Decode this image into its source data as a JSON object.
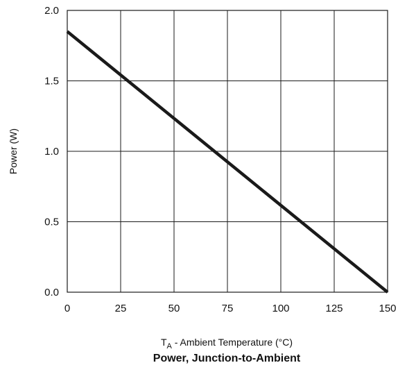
{
  "chart_data": {
    "type": "line",
    "title": "Power, Junction-to-Ambient",
    "xlabel_main": "T",
    "xlabel_sub": "A",
    "xlabel_rest": " - Ambient Temperature (°C)",
    "ylabel": "Power (W)",
    "xlim": [
      0,
      150
    ],
    "ylim": [
      0.0,
      2.0
    ],
    "x_ticks": [
      "0",
      "25",
      "50",
      "75",
      "100",
      "125",
      "150"
    ],
    "y_ticks": [
      "0.0",
      "0.5",
      "1.0",
      "1.5",
      "2.0"
    ],
    "grid": true,
    "series": [
      {
        "x": [
          0,
          150
        ],
        "y": [
          1.85,
          0.0
        ]
      }
    ],
    "colors": {
      "line": "#1a1a1a",
      "grid": "#1a1a1a"
    }
  }
}
